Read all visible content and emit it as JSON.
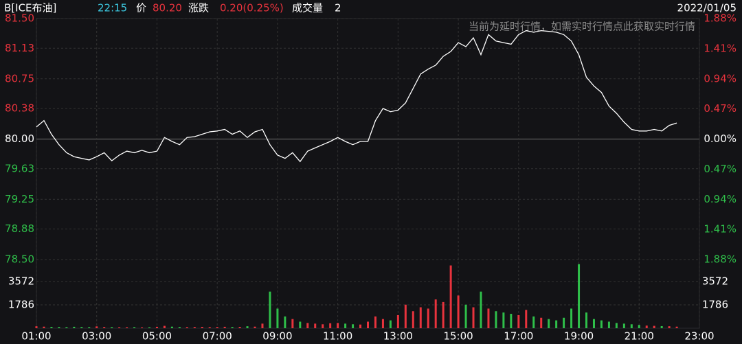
{
  "header": {
    "symbol": "B[ICE布油]",
    "time": "22:15",
    "price_label": "价",
    "price": "80.20",
    "change_label": "涨跌",
    "change": "0.20(0.25%)",
    "volume_label": "成交量",
    "volume": "2",
    "date": "2022/01/05",
    "notice": "当前为延时行情，如需实时行情点此获取实时行情"
  },
  "chart_data": [
    {
      "type": "line",
      "base": 80,
      "color": "#ffffff",
      "up_color": "#e8333d",
      "down_color": "#2fbf4a",
      "grid": true,
      "x": [
        1,
        1.25,
        1.5,
        1.75,
        2,
        2.25,
        2.5,
        2.75,
        3,
        3.25,
        3.5,
        3.75,
        4,
        4.25,
        4.5,
        4.75,
        5,
        5.25,
        5.5,
        5.75,
        6,
        6.25,
        6.5,
        6.75,
        7,
        7.25,
        7.5,
        7.75,
        8,
        8.25,
        8.5,
        8.75,
        9,
        9.25,
        9.5,
        9.75,
        10,
        10.25,
        10.5,
        10.75,
        11,
        11.25,
        11.5,
        11.75,
        12,
        12.25,
        12.5,
        12.75,
        13,
        13.25,
        13.5,
        13.75,
        14,
        14.25,
        14.5,
        14.75,
        15,
        15.25,
        15.5,
        15.75,
        16,
        16.25,
        16.5,
        16.75,
        17,
        17.25,
        17.5,
        17.75,
        18,
        18.25,
        18.5,
        18.75,
        19,
        19.25,
        19.5,
        19.75,
        20,
        20.25,
        20.5,
        20.75,
        21,
        21.25,
        21.5,
        21.75,
        22,
        22.25
      ],
      "values": [
        80.15,
        80.23,
        80.06,
        79.93,
        79.83,
        79.78,
        79.76,
        79.74,
        79.78,
        79.83,
        79.73,
        79.8,
        79.85,
        79.83,
        79.86,
        79.83,
        79.85,
        80.02,
        79.97,
        79.93,
        80.02,
        80.03,
        80.06,
        80.09,
        80.1,
        80.12,
        80.06,
        80.1,
        80.02,
        80.09,
        80.12,
        79.93,
        79.8,
        79.76,
        79.83,
        79.72,
        79.85,
        79.89,
        79.93,
        79.97,
        80.02,
        79.97,
        79.93,
        79.97,
        79.97,
        80.23,
        80.38,
        80.34,
        80.36,
        80.45,
        80.63,
        80.81,
        80.87,
        80.92,
        81.03,
        81.09,
        81.2,
        81.15,
        81.26,
        81.05,
        81.3,
        81.22,
        81.2,
        81.18,
        81.3,
        81.35,
        81.33,
        81.35,
        81.34,
        81.33,
        81.3,
        81.22,
        81.05,
        80.77,
        80.66,
        80.58,
        80.41,
        80.32,
        80.21,
        80.12,
        80.1,
        80.1,
        80.12,
        80.1,
        80.17,
        80.2
      ],
      "xlim": [
        1,
        23
      ],
      "xticks": [
        {
          "value": 1,
          "label": "01:00"
        },
        {
          "value": 3,
          "label": "03:00"
        },
        {
          "value": 5,
          "label": "05:00"
        },
        {
          "value": 7,
          "label": "07:00"
        },
        {
          "value": 9,
          "label": "09:00"
        },
        {
          "value": 11,
          "label": "11:00"
        },
        {
          "value": 13,
          "label": "13:00"
        },
        {
          "value": 15,
          "label": "15:00"
        },
        {
          "value": 17,
          "label": "17:00"
        },
        {
          "value": 19,
          "label": "19:00"
        },
        {
          "value": 21,
          "label": "21:00"
        },
        {
          "value": 23,
          "label": "23:00"
        }
      ],
      "ylim": [
        78.5,
        81.5
      ],
      "yticks": [
        {
          "value": 81.5,
          "label": "81.50"
        },
        {
          "value": 81.13,
          "label": "81.13"
        },
        {
          "value": 80.75,
          "label": "80.75"
        },
        {
          "value": 80.38,
          "label": "80.38"
        },
        {
          "value": 80,
          "label": "80.00"
        },
        {
          "value": 79.63,
          "label": "79.63"
        },
        {
          "value": 79.25,
          "label": "79.25"
        },
        {
          "value": 78.88,
          "label": "78.88"
        },
        {
          "value": 78.5,
          "label": "78.50"
        }
      ],
      "y2lim": [
        -1.88,
        1.88
      ],
      "y2ticks": [
        {
          "value": 1.88,
          "label": "1.88%"
        },
        {
          "value": 1.41,
          "label": "1.41%"
        },
        {
          "value": 0.94,
          "label": "0.94%"
        },
        {
          "value": 0.47,
          "label": "0.47%"
        },
        {
          "value": 0,
          "label": "0.00%"
        },
        {
          "value": -0.47,
          "label": "0.47%"
        },
        {
          "value": -0.94,
          "label": "0.94%"
        },
        {
          "value": -1.41,
          "label": "1.41%"
        },
        {
          "value": -1.88,
          "label": "1.88%"
        }
      ]
    },
    {
      "type": "bar",
      "up_color": "#e8333d",
      "down_color": "#2fbf4a",
      "grid": true,
      "x": [
        1,
        1.25,
        1.5,
        1.75,
        2,
        2.25,
        2.5,
        2.75,
        3,
        3.25,
        3.5,
        3.75,
        4,
        4.25,
        4.5,
        4.75,
        5,
        5.25,
        5.5,
        5.75,
        6,
        6.25,
        6.5,
        6.75,
        7,
        7.25,
        7.5,
        7.75,
        8,
        8.25,
        8.5,
        8.75,
        9,
        9.25,
        9.5,
        9.75,
        10,
        10.25,
        10.5,
        10.75,
        11,
        11.25,
        11.5,
        11.75,
        12,
        12.25,
        12.5,
        12.75,
        13,
        13.25,
        13.5,
        13.75,
        14,
        14.25,
        14.5,
        14.75,
        15,
        15.25,
        15.5,
        15.75,
        16,
        16.25,
        16.5,
        16.75,
        17,
        17.25,
        17.5,
        17.75,
        18,
        18.25,
        18.5,
        18.75,
        19,
        19.25,
        19.5,
        19.75,
        20,
        20.25,
        20.5,
        20.75,
        21,
        21.25,
        21.5,
        21.75,
        22,
        22.25
      ],
      "values": [
        150,
        120,
        100,
        90,
        80,
        110,
        90,
        80,
        140,
        90,
        80,
        70,
        70,
        80,
        60,
        70,
        110,
        180,
        120,
        90,
        80,
        90,
        100,
        80,
        90,
        110,
        90,
        100,
        150,
        120,
        350,
        2800,
        1500,
        900,
        700,
        500,
        400,
        350,
        300,
        380,
        400,
        350,
        300,
        280,
        500,
        900,
        700,
        600,
        1000,
        1800,
        1300,
        1600,
        1500,
        2200,
        2000,
        4800,
        2500,
        1800,
        1600,
        2800,
        1500,
        1300,
        1200,
        1100,
        1000,
        1400,
        900,
        800,
        700,
        600,
        800,
        1500,
        4900,
        1200,
        700,
        600,
        500,
        400,
        350,
        300,
        250,
        200,
        180,
        160,
        150,
        120
      ],
      "xlim": [
        1,
        23
      ],
      "ylim": [
        0,
        5250
      ],
      "yticks": [
        1786,
        3572
      ]
    }
  ]
}
